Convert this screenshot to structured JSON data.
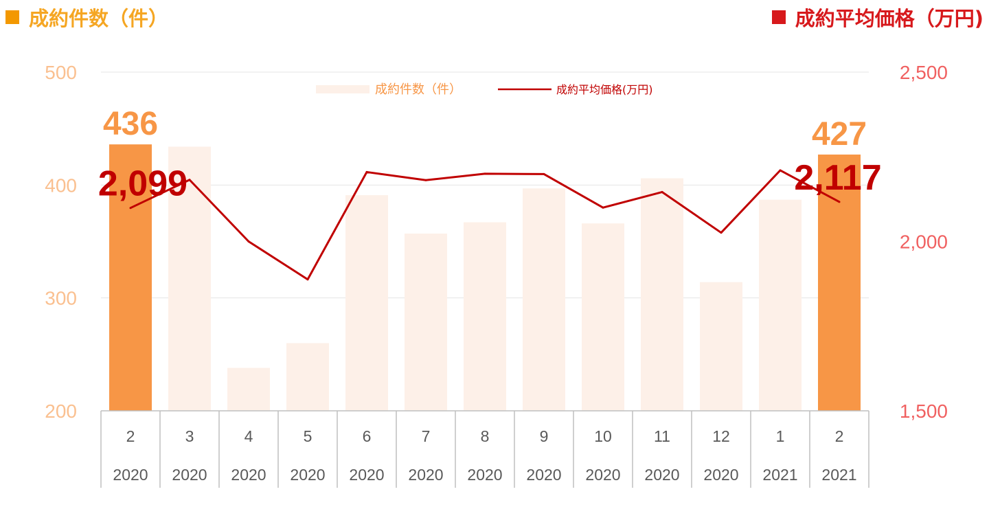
{
  "header": {
    "left_title": "成約件数（件）",
    "right_title": "成約平均価格（万円)"
  },
  "legend": {
    "bar_label": "成約件数（件）",
    "line_label": "成約平均価格(万円)"
  },
  "colors": {
    "bar_highlight": "#f79646",
    "bar_faded": "#fdf0e8",
    "line": "#c00000",
    "left_axis_text": "#fac090",
    "right_axis_text": "#f06060",
    "bar_label_text": "#f79646",
    "line_label_text": "#c00000"
  },
  "chart_data": {
    "type": "bar",
    "categories": [
      "2",
      "3",
      "4",
      "5",
      "6",
      "7",
      "8",
      "9",
      "10",
      "11",
      "12",
      "1",
      "2"
    ],
    "years": [
      "2020",
      "2020",
      "2020",
      "2020",
      "2020",
      "2020",
      "2020",
      "2020",
      "2020",
      "2020",
      "2020",
      "2021",
      "2021"
    ],
    "series": [
      {
        "name": "成約件数（件）",
        "type": "bar",
        "axis": "left",
        "values": [
          436,
          434,
          238,
          260,
          391,
          357,
          367,
          397,
          366,
          406,
          314,
          387,
          427
        ],
        "highlighted": [
          0,
          12
        ]
      },
      {
        "name": "成約平均価格(万円)",
        "type": "line",
        "axis": "right",
        "values": [
          2099,
          2182,
          2000,
          1888,
          2205,
          2181,
          2200,
          2199,
          2100,
          2146,
          2026,
          2210,
          2117
        ]
      }
    ],
    "left_axis": {
      "ylim": [
        200,
        500
      ],
      "ticks": [
        200,
        300,
        400,
        500
      ]
    },
    "right_axis": {
      "ylim": [
        1500,
        2500
      ],
      "ticks": [
        "1,500",
        "2,000",
        "2,500"
      ],
      "tick_values": [
        1500,
        2000,
        2500
      ]
    },
    "annotations": [
      {
        "label": "436",
        "series": 0,
        "index": 0
      },
      {
        "label": "427",
        "series": 0,
        "index": 12
      },
      {
        "label": "2,099",
        "series": 1,
        "index": 0
      },
      {
        "label": "2,117",
        "series": 1,
        "index": 12
      }
    ],
    "grid": true,
    "legend_position": "top-center"
  }
}
